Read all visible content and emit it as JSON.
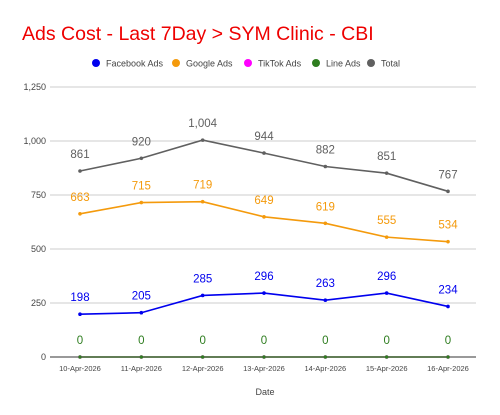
{
  "chart_data": {
    "type": "line",
    "title": "Ads Cost - Last 7Day > SYM Clinic - CBI",
    "xlabel": "Date",
    "ylabel": "",
    "categories": [
      "10-Apr-2026",
      "11-Apr-2026",
      "12-Apr-2026",
      "13-Apr-2026",
      "14-Apr-2026",
      "15-Apr-2026",
      "16-Apr-2026"
    ],
    "ylim": [
      0,
      1250
    ],
    "yticks": [
      0,
      250,
      500,
      750,
      1000,
      1250
    ],
    "ytick_labels": [
      "0",
      "250",
      "500",
      "750",
      "1,000",
      "1,250"
    ],
    "grid": true,
    "legend_position": "top",
    "series": [
      {
        "name": "Facebook Ads",
        "color": "#0000ee",
        "values": [
          198,
          205,
          285,
          296,
          263,
          296,
          234
        ],
        "labels": [
          "198",
          "205",
          "285",
          "296",
          "263",
          "296",
          "234"
        ]
      },
      {
        "name": "Google Ads",
        "color": "#f49a0c",
        "values": [
          663,
          715,
          719,
          649,
          619,
          555,
          534
        ],
        "labels": [
          "663",
          "715",
          "719",
          "649",
          "619",
          "555",
          "534"
        ]
      },
      {
        "name": "TikTok Ads",
        "color": "#ff00ff",
        "values": [
          0,
          0,
          0,
          0,
          0,
          0,
          0
        ],
        "labels": []
      },
      {
        "name": "Line Ads",
        "color": "#2e7d1f",
        "values": [
          0,
          0,
          0,
          0,
          0,
          0,
          0
        ],
        "labels": [
          "0",
          "0",
          "0",
          "0",
          "0",
          "0",
          "0"
        ]
      },
      {
        "name": "Total",
        "color": "#606060",
        "values": [
          861,
          920,
          1004,
          944,
          882,
          851,
          767
        ],
        "labels": [
          "861",
          "920",
          "1,004",
          "944",
          "882",
          "851",
          "767"
        ]
      }
    ],
    "title_color": "#ee0000"
  }
}
